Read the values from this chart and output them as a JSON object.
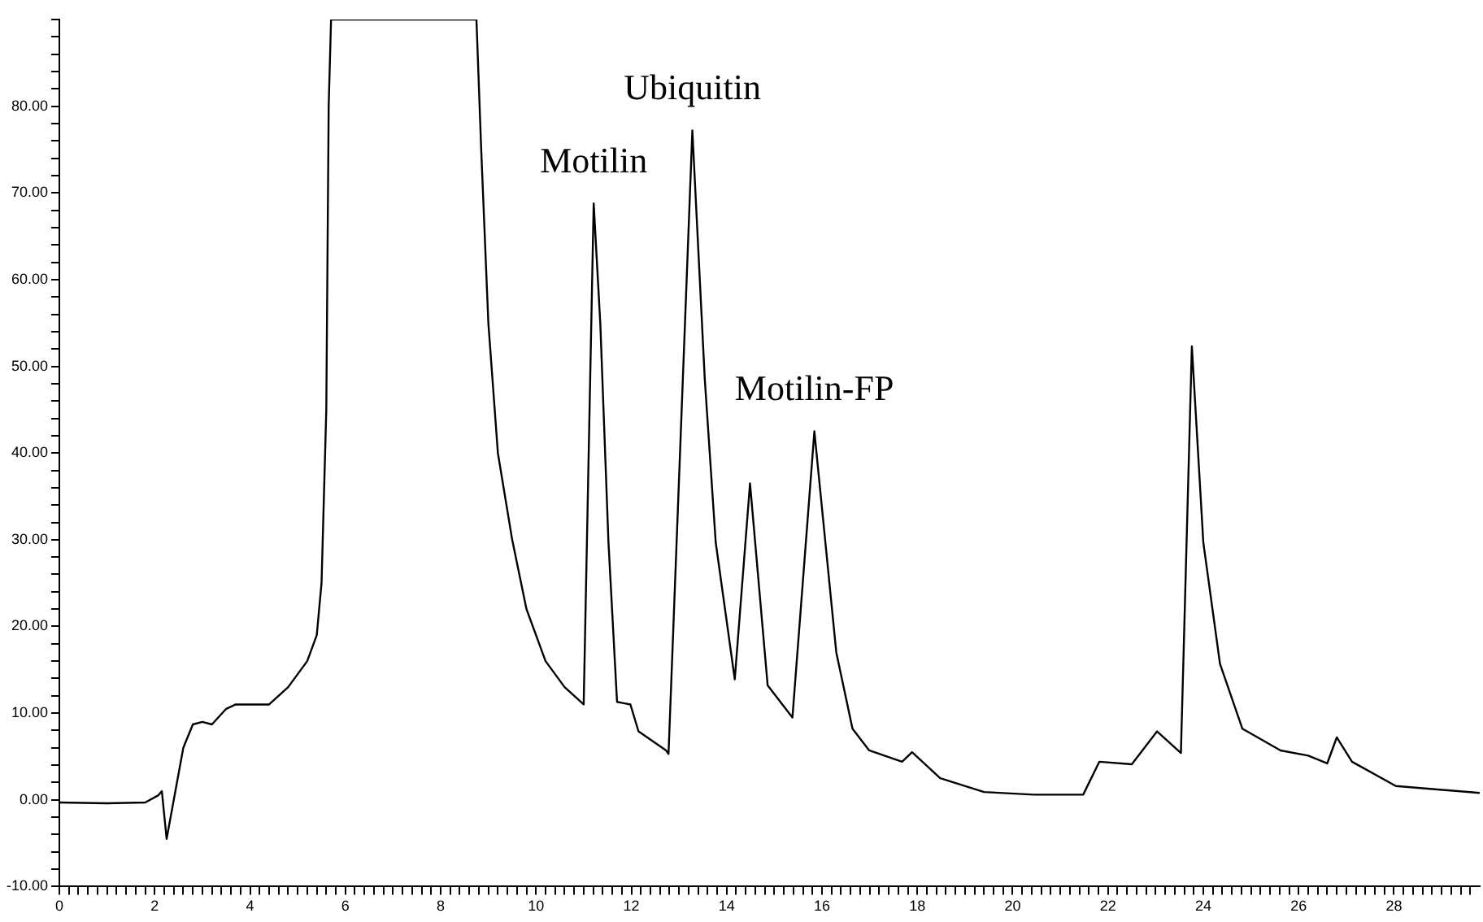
{
  "chart_data": {
    "type": "line",
    "grid": false,
    "legend": false,
    "marker": "none",
    "line_style": "solid",
    "xlim": [
      0,
      29.8
    ],
    "ylim": [
      -10,
      90
    ],
    "xticks": [
      0,
      {
        "value": 0.2,
        "label": null
      },
      {
        "value": 0.4,
        "label": null
      },
      {
        "value": 0.6,
        "label": null
      },
      {
        "value": 0.8,
        "label": null
      },
      {
        "value": 1,
        "label": null
      },
      {
        "value": 1.2,
        "label": null
      },
      {
        "value": 1.4,
        "label": null
      },
      {
        "value": 1.6,
        "label": null
      },
      {
        "value": 1.8,
        "label": null
      },
      2,
      {
        "value": 2.2,
        "label": null
      },
      {
        "value": 2.4,
        "label": null
      },
      {
        "value": 2.6,
        "label": null
      },
      {
        "value": 2.8,
        "label": null
      },
      {
        "value": 3,
        "label": null
      },
      {
        "value": 3.2,
        "label": null
      },
      {
        "value": 3.4,
        "label": null
      },
      {
        "value": 3.6,
        "label": null
      },
      {
        "value": 3.8,
        "label": null
      },
      4,
      {
        "value": 4.2,
        "label": null
      },
      {
        "value": 4.4,
        "label": null
      },
      {
        "value": 4.6,
        "label": null
      },
      {
        "value": 4.8,
        "label": null
      },
      {
        "value": 5,
        "label": null
      },
      {
        "value": 5.2,
        "label": null
      },
      {
        "value": 5.4,
        "label": null
      },
      {
        "value": 5.6,
        "label": null
      },
      {
        "value": 5.8,
        "label": null
      },
      6,
      {
        "value": 6.2,
        "label": null
      },
      {
        "value": 6.4,
        "label": null
      },
      {
        "value": 6.6,
        "label": null
      },
      {
        "value": 6.8,
        "label": null
      },
      {
        "value": 7,
        "label": null
      },
      {
        "value": 7.2,
        "label": null
      },
      {
        "value": 7.4,
        "label": null
      },
      {
        "value": 7.6,
        "label": null
      },
      {
        "value": 7.8,
        "label": null
      },
      8,
      {
        "value": 8.2,
        "label": null
      },
      {
        "value": 8.4,
        "label": null
      },
      {
        "value": 8.6,
        "label": null
      },
      {
        "value": 8.8,
        "label": null
      },
      {
        "value": 9,
        "label": null
      },
      {
        "value": 9.2,
        "label": null
      },
      {
        "value": 9.4,
        "label": null
      },
      {
        "value": 9.6,
        "label": null
      },
      {
        "value": 9.8,
        "label": null
      },
      10,
      {
        "value": 10.2,
        "label": null
      },
      {
        "value": 10.4,
        "label": null
      },
      {
        "value": 10.6,
        "label": null
      },
      {
        "value": 10.8,
        "label": null
      },
      {
        "value": 11,
        "label": null
      },
      {
        "value": 11.2,
        "label": null
      },
      {
        "value": 11.4,
        "label": null
      },
      {
        "value": 11.6,
        "label": null
      },
      {
        "value": 11.8,
        "label": null
      },
      12,
      {
        "value": 12.2,
        "label": null
      },
      {
        "value": 12.4,
        "label": null
      },
      {
        "value": 12.6,
        "label": null
      },
      {
        "value": 12.8,
        "label": null
      },
      {
        "value": 13,
        "label": null
      },
      {
        "value": 13.2,
        "label": null
      },
      {
        "value": 13.4,
        "label": null
      },
      {
        "value": 13.6,
        "label": null
      },
      {
        "value": 13.8,
        "label": null
      },
      14,
      {
        "value": 14.2,
        "label": null
      },
      {
        "value": 14.4,
        "label": null
      },
      {
        "value": 14.6,
        "label": null
      },
      {
        "value": 14.8,
        "label": null
      },
      {
        "value": 15,
        "label": null
      },
      {
        "value": 15.2,
        "label": null
      },
      {
        "value": 15.4,
        "label": null
      },
      {
        "value": 15.6,
        "label": null
      },
      {
        "value": 15.8,
        "label": null
      },
      16,
      {
        "value": 16.2,
        "label": null
      },
      {
        "value": 16.4,
        "label": null
      },
      {
        "value": 16.6,
        "label": null
      },
      {
        "value": 16.8,
        "label": null
      },
      {
        "value": 17,
        "label": null
      },
      {
        "value": 17.2,
        "label": null
      },
      {
        "value": 17.4,
        "label": null
      },
      {
        "value": 17.6,
        "label": null
      },
      {
        "value": 17.8,
        "label": null
      },
      18,
      {
        "value": 18.2,
        "label": null
      },
      {
        "value": 18.4,
        "label": null
      },
      {
        "value": 18.6,
        "label": null
      },
      {
        "value": 18.8,
        "label": null
      },
      {
        "value": 19,
        "label": null
      },
      {
        "value": 19.2,
        "label": null
      },
      {
        "value": 19.4,
        "label": null
      },
      {
        "value": 19.6,
        "label": null
      },
      {
        "value": 19.8,
        "label": null
      },
      20,
      {
        "value": 20.2,
        "label": null
      },
      {
        "value": 20.4,
        "label": null
      },
      {
        "value": 20.6,
        "label": null
      },
      {
        "value": 20.8,
        "label": null
      },
      {
        "value": 21,
        "label": null
      },
      {
        "value": 21.2,
        "label": null
      },
      {
        "value": 21.4,
        "label": null
      },
      {
        "value": 21.6,
        "label": null
      },
      {
        "value": 21.8,
        "label": null
      },
      22,
      {
        "value": 22.2,
        "label": null
      },
      {
        "value": 22.4,
        "label": null
      },
      {
        "value": 22.6,
        "label": null
      },
      {
        "value": 22.8,
        "label": null
      },
      {
        "value": 23,
        "label": null
      },
      {
        "value": 23.2,
        "label": null
      },
      {
        "value": 23.4,
        "label": null
      },
      {
        "value": 23.6,
        "label": null
      },
      {
        "value": 23.8,
        "label": null
      },
      24,
      {
        "value": 24.2,
        "label": null
      },
      {
        "value": 24.4,
        "label": null
      },
      {
        "value": 24.6,
        "label": null
      },
      {
        "value": 24.8,
        "label": null
      },
      {
        "value": 25,
        "label": null
      },
      {
        "value": 25.2,
        "label": null
      },
      {
        "value": 25.4,
        "label": null
      },
      {
        "value": 25.6,
        "label": null
      },
      {
        "value": 25.8,
        "label": null
      },
      26,
      {
        "value": 26.2,
        "label": null
      },
      {
        "value": 26.4,
        "label": null
      },
      {
        "value": 26.6,
        "label": null
      },
      {
        "value": 26.8,
        "label": null
      },
      {
        "value": 27,
        "label": null
      },
      {
        "value": 27.2,
        "label": null
      },
      {
        "value": 27.4,
        "label": null
      },
      {
        "value": 27.6,
        "label": null
      },
      {
        "value": 27.8,
        "label": null
      },
      28,
      {
        "value": 28.2,
        "label": null
      },
      {
        "value": 28.4,
        "label": null
      },
      {
        "value": 28.6,
        "label": null
      },
      {
        "value": 28.8,
        "label": null
      },
      {
        "value": 29,
        "label": null
      },
      {
        "value": 29.2,
        "label": null
      },
      {
        "value": 29.4,
        "label": null
      },
      {
        "value": 29.6,
        "label": null
      }
    ],
    "yticks": [
      {
        "value": -10,
        "label": "-10.00"
      },
      {
        "value": -8,
        "label": null
      },
      {
        "value": -6,
        "label": null
      },
      {
        "value": -4,
        "label": null
      },
      {
        "value": -2,
        "label": null
      },
      {
        "value": 0,
        "label": "0.00"
      },
      {
        "value": 2,
        "label": null
      },
      {
        "value": 4,
        "label": null
      },
      {
        "value": 6,
        "label": null
      },
      {
        "value": 8,
        "label": null
      },
      {
        "value": 10,
        "label": "10.00"
      },
      {
        "value": 12,
        "label": null
      },
      {
        "value": 14,
        "label": null
      },
      {
        "value": 16,
        "label": null
      },
      {
        "value": 18,
        "label": null
      },
      {
        "value": 20,
        "label": "20.00"
      },
      {
        "value": 22,
        "label": null
      },
      {
        "value": 24,
        "label": null
      },
      {
        "value": 26,
        "label": null
      },
      {
        "value": 28,
        "label": null
      },
      {
        "value": 30,
        "label": "30.00"
      },
      {
        "value": 32,
        "label": null
      },
      {
        "value": 34,
        "label": null
      },
      {
        "value": 36,
        "label": null
      },
      {
        "value": 38,
        "label": null
      },
      {
        "value": 40,
        "label": "40.00"
      },
      {
        "value": 42,
        "label": null
      },
      {
        "value": 44,
        "label": null
      },
      {
        "value": 46,
        "label": null
      },
      {
        "value": 48,
        "label": null
      },
      {
        "value": 50,
        "label": "50.00"
      },
      {
        "value": 52,
        "label": null
      },
      {
        "value": 54,
        "label": null
      },
      {
        "value": 56,
        "label": null
      },
      {
        "value": 58,
        "label": null
      },
      {
        "value": 60,
        "label": "60.00"
      },
      {
        "value": 62,
        "label": null
      },
      {
        "value": 64,
        "label": null
      },
      {
        "value": 66,
        "label": null
      },
      {
        "value": 68,
        "label": null
      },
      {
        "value": 70,
        "label": "70.00"
      },
      {
        "value": 72,
        "label": null
      },
      {
        "value": 74,
        "label": null
      },
      {
        "value": 76,
        "label": null
      },
      {
        "value": 78,
        "label": null
      },
      {
        "value": 80,
        "label": "80.00"
      },
      {
        "value": 82,
        "label": null
      },
      {
        "value": 84,
        "label": null
      },
      {
        "value": 86,
        "label": null
      },
      {
        "value": 88,
        "label": null
      },
      {
        "value": 90,
        "label": null
      }
    ],
    "annotations": [
      {
        "text": "Motilin",
        "x": 11.21,
        "y": 68.8
      },
      {
        "text": "Ubiquitin",
        "x": 13.28,
        "y": 77.2
      },
      {
        "text": "Motilin-FP",
        "x": 15.84,
        "y": 42.5
      }
    ],
    "series": [
      {
        "color": "#000000",
        "x": [
          0,
          1,
          1.8,
          2.07,
          2.15,
          2.25,
          2.4,
          2.6,
          2.8,
          3.0,
          3.2,
          3.5,
          3.7,
          4.4,
          4.8,
          5.2,
          5.4,
          5.5,
          5.6,
          5.65,
          5.7,
          8.75,
          8.85,
          9.0,
          9.2,
          9.5,
          9.8,
          10.2,
          10.6,
          11.0,
          11.21,
          11.35,
          11.52,
          11.7,
          11.98,
          12.15,
          12.73,
          12.78,
          13.28,
          13.54,
          13.77,
          14.17,
          14.49,
          14.86,
          15.38,
          15.84,
          16.3,
          16.64,
          16.99,
          17.68,
          17.89,
          18.48,
          19.4,
          20.44,
          21.48,
          21.82,
          22.5,
          23.03,
          23.53,
          23.76,
          24.0,
          24.35,
          24.82,
          25.62,
          26.2,
          26.6,
          26.8,
          27.12,
          28.04,
          29.8
        ],
        "values": [
          -0.3,
          -0.4,
          -0.3,
          0.5,
          1,
          -4.5,
          0,
          6,
          8.7,
          9,
          8.7,
          10.5,
          11,
          11,
          13,
          16,
          19,
          25,
          45,
          80,
          90,
          90,
          75,
          55,
          40,
          30,
          22,
          16,
          13,
          11,
          68.8,
          54.8,
          29.7,
          11.3,
          11,
          7.9,
          5.7,
          5.3,
          77.2,
          48.6,
          29.7,
          13.9,
          36.5,
          13.2,
          9.5,
          42.5,
          17,
          8.2,
          5.7,
          4.4,
          5.5,
          2.5,
          0.9,
          0.6,
          0.6,
          4.4,
          4.1,
          7.9,
          5.4,
          52.3,
          29.7,
          15.7,
          8.2,
          5.7,
          5.1,
          4.2,
          7.2,
          4.4,
          1.6,
          0.8
        ]
      }
    ]
  }
}
